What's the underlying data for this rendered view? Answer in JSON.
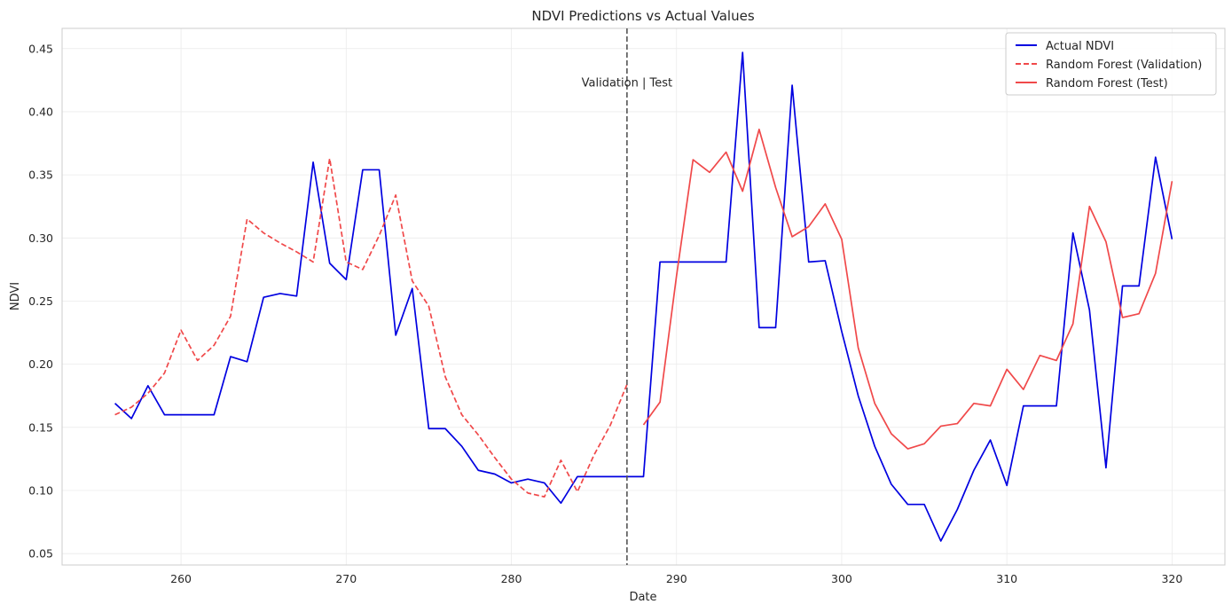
{
  "chart_data": {
    "type": "line",
    "title": "NDVI Predictions vs Actual Values",
    "xlabel": "Date",
    "ylabel": "NDVI",
    "xlim": [
      252.8,
      323.2
    ],
    "ylim": [
      0.041,
      0.466
    ],
    "xticks": [
      260,
      270,
      280,
      290,
      300,
      310,
      320
    ],
    "yticks": [
      0.05,
      0.1,
      0.15,
      0.2,
      0.25,
      0.3,
      0.35,
      0.4,
      0.45
    ],
    "ytick_labels": [
      "0.05",
      "0.10",
      "0.15",
      "0.20",
      "0.25",
      "0.30",
      "0.35",
      "0.40",
      "0.45"
    ],
    "grid": true,
    "legend_position": "upper right",
    "split_line": {
      "x": 287,
      "label": "Validation | Test",
      "label_y": 0.42,
      "color": "#555555"
    },
    "series": [
      {
        "name": "Actual NDVI",
        "color": "#0000e0",
        "style": "solid",
        "x": [
          256,
          257,
          258,
          259,
          260,
          261,
          262,
          263,
          264,
          265,
          266,
          267,
          268,
          269,
          270,
          271,
          272,
          273,
          274,
          275,
          276,
          277,
          278,
          279,
          280,
          281,
          282,
          283,
          284,
          285,
          286,
          287,
          288,
          289,
          290,
          291,
          292,
          293,
          294,
          295,
          296,
          297,
          298,
          299,
          300,
          301,
          302,
          303,
          304,
          305,
          306,
          307,
          308,
          309,
          310,
          311,
          312,
          313,
          314,
          315,
          316,
          317,
          318,
          319,
          320
        ],
        "y": [
          0.169,
          0.157,
          0.183,
          0.16,
          0.16,
          0.16,
          0.16,
          0.206,
          0.202,
          0.253,
          0.256,
          0.254,
          0.36,
          0.28,
          0.267,
          0.354,
          0.354,
          0.223,
          0.26,
          0.149,
          0.149,
          0.135,
          0.116,
          0.113,
          0.106,
          0.109,
          0.106,
          0.09,
          0.111,
          0.111,
          0.111,
          0.111,
          0.111,
          0.281,
          0.281,
          0.281,
          0.281,
          0.281,
          0.447,
          0.229,
          0.229,
          0.421,
          0.281,
          0.282,
          0.226,
          0.175,
          0.135,
          0.105,
          0.089,
          0.089,
          0.06,
          0.085,
          0.116,
          0.14,
          0.104,
          0.167,
          0.167,
          0.167,
          0.304,
          0.243,
          0.118,
          0.262,
          0.262,
          0.364,
          0.299
        ]
      },
      {
        "name": "Random Forest (Validation)",
        "color": "#f0494a",
        "style": "dashed",
        "x": [
          256,
          257,
          258,
          259,
          260,
          261,
          262,
          263,
          264,
          265,
          266,
          267,
          268,
          269,
          270,
          271,
          272,
          273,
          274,
          275,
          276,
          277,
          278,
          279,
          280,
          281,
          282,
          283,
          284,
          285,
          286,
          287
        ],
        "y": [
          0.16,
          0.166,
          0.177,
          0.193,
          0.227,
          0.203,
          0.215,
          0.238,
          0.315,
          0.304,
          0.296,
          0.289,
          0.281,
          0.363,
          0.281,
          0.275,
          0.302,
          0.334,
          0.266,
          0.246,
          0.19,
          0.16,
          0.144,
          0.126,
          0.109,
          0.098,
          0.095,
          0.124,
          0.099,
          0.128,
          0.152,
          0.184
        ]
      },
      {
        "name": "Random Forest (Test)",
        "color": "#f0494a",
        "style": "solid",
        "x": [
          288,
          289,
          290,
          291,
          292,
          293,
          294,
          295,
          296,
          297,
          298,
          299,
          300,
          301,
          302,
          303,
          304,
          305,
          306,
          307,
          308,
          309,
          310,
          311,
          312,
          313,
          314,
          315,
          316,
          317,
          318,
          319,
          320
        ],
        "y": [
          0.152,
          0.17,
          0.27,
          0.362,
          0.352,
          0.368,
          0.337,
          0.386,
          0.34,
          0.301,
          0.309,
          0.327,
          0.299,
          0.213,
          0.169,
          0.145,
          0.133,
          0.137,
          0.151,
          0.153,
          0.169,
          0.167,
          0.196,
          0.18,
          0.207,
          0.203,
          0.232,
          0.325,
          0.297,
          0.237,
          0.24,
          0.272,
          0.345
        ]
      }
    ]
  }
}
